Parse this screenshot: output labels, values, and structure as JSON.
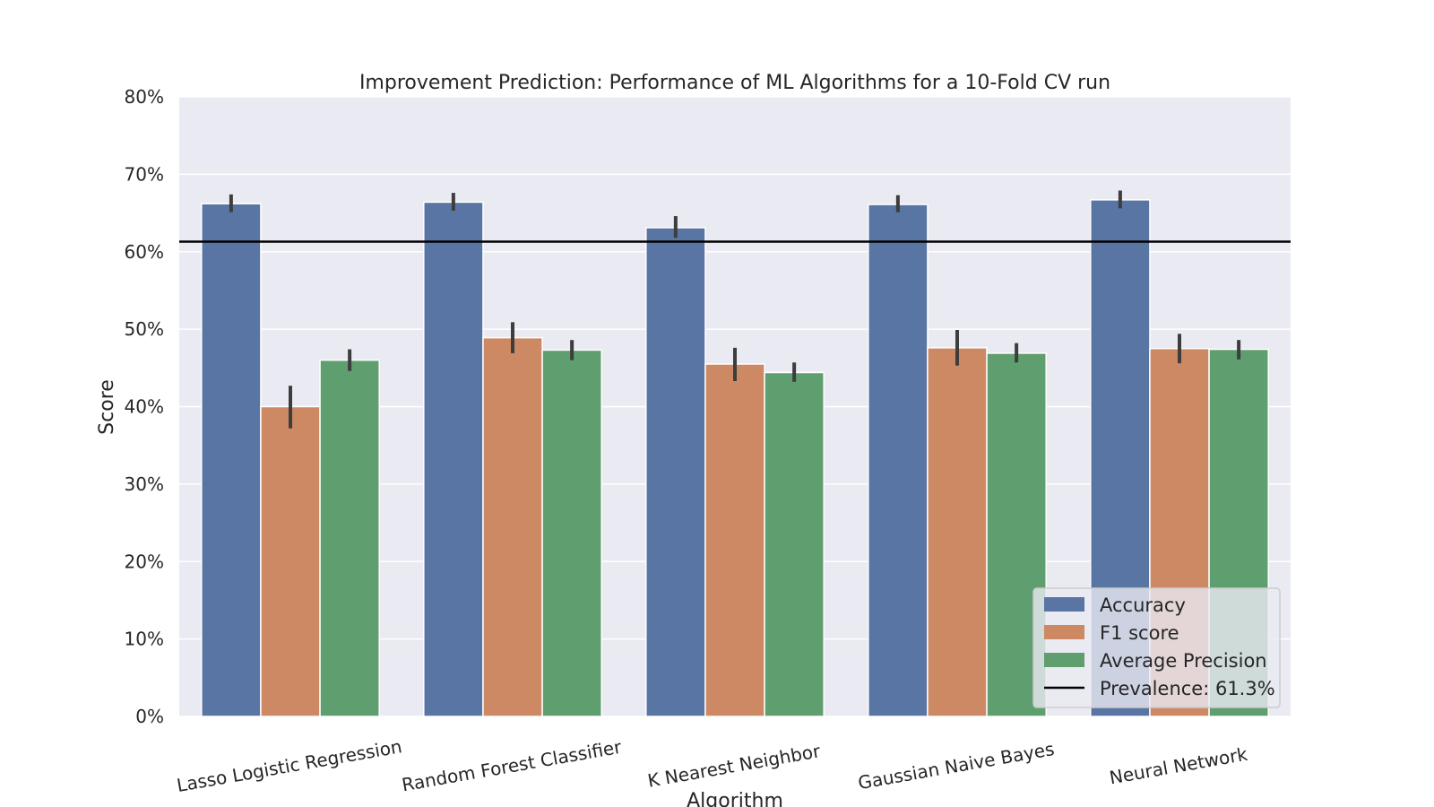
{
  "chart_data": {
    "type": "bar",
    "title": "Improvement Prediction: Performance of ML Algorithms for a 10-Fold CV run",
    "xlabel": "Algorithm",
    "ylabel": "Score",
    "ylim": [
      0,
      80
    ],
    "yticks": [
      0,
      10,
      20,
      30,
      40,
      50,
      60,
      70,
      80
    ],
    "ytick_labels": [
      "0%",
      "10%",
      "20%",
      "30%",
      "40%",
      "50%",
      "60%",
      "70%",
      "80%"
    ],
    "grid": true,
    "legend_position": "lower-right",
    "categories": [
      "Lasso Logistic Regression",
      "Random Forest Classifier",
      "K Nearest Neighbor",
      "Gaussian Naive Bayes",
      "Neural Network"
    ],
    "series": [
      {
        "name": "Accuracy",
        "color": "#5975a4",
        "values": [
          66.2,
          66.4,
          63.1,
          66.1,
          66.7
        ],
        "err_low": [
          65.1,
          65.3,
          61.8,
          65.1,
          65.6
        ],
        "err_high": [
          67.4,
          67.6,
          64.6,
          67.3,
          67.9
        ]
      },
      {
        "name": "F1 score",
        "color": "#cc8963",
        "values": [
          40.0,
          48.9,
          45.5,
          47.6,
          47.5
        ],
        "err_low": [
          37.2,
          46.9,
          43.3,
          45.3,
          45.6
        ],
        "err_high": [
          42.7,
          50.9,
          47.6,
          49.9,
          49.4
        ]
      },
      {
        "name": "Average Precision",
        "color": "#5f9e6e",
        "values": [
          46.0,
          47.3,
          44.4,
          46.9,
          47.4
        ],
        "err_low": [
          44.6,
          46.0,
          43.2,
          45.7,
          46.1
        ],
        "err_high": [
          47.4,
          48.6,
          45.7,
          48.2,
          48.6
        ]
      }
    ],
    "reference_line": {
      "label": "Prevalence: 61.3%",
      "value": 61.3,
      "color": "#000000"
    }
  }
}
